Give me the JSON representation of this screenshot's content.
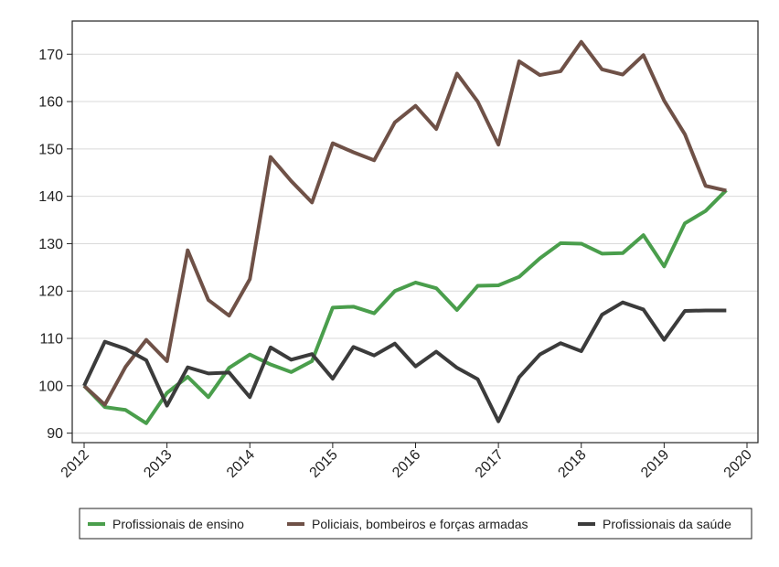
{
  "chart_data": {
    "type": "line",
    "xlabel": "",
    "ylabel": "",
    "xlim": [
      2012,
      2020
    ],
    "ylim": [
      88,
      177
    ],
    "x_ticks": [
      2012,
      2013,
      2014,
      2015,
      2016,
      2017,
      2018,
      2019,
      2020
    ],
    "x_tick_labels": [
      "2012",
      "2013",
      "2014",
      "2015",
      "2016",
      "2017",
      "2018",
      "2019",
      "2020"
    ],
    "y_ticks": [
      90,
      100,
      110,
      120,
      130,
      140,
      150,
      160,
      170
    ],
    "y_tick_labels": [
      "90",
      "100",
      "110",
      "120",
      "130",
      "140",
      "150",
      "160",
      "170"
    ],
    "grid": "horizontal",
    "legend_position": "bottom",
    "x": [
      2012.0,
      2012.25,
      2012.5,
      2012.75,
      2013.0,
      2013.25,
      2013.5,
      2013.75,
      2014.0,
      2014.25,
      2014.5,
      2014.75,
      2015.0,
      2015.25,
      2015.5,
      2015.75,
      2016.0,
      2016.25,
      2016.5,
      2016.75,
      2017.0,
      2017.25,
      2017.5,
      2017.75,
      2018.0,
      2018.25,
      2018.5,
      2018.75,
      2019.0,
      2019.25,
      2019.5,
      2019.75
    ],
    "series": [
      {
        "name": "Profissionais de ensino",
        "color": "#4a9e4c",
        "values": [
          100.0,
          95.5,
          94.9,
          92.1,
          98.5,
          101.9,
          97.6,
          103.8,
          106.6,
          104.5,
          102.9,
          105.2,
          116.5,
          116.7,
          115.3,
          120.0,
          121.8,
          120.6,
          116.0,
          121.1,
          121.2,
          123.0,
          126.9,
          130.1,
          130.0,
          127.9,
          128.0,
          131.8,
          125.2,
          134.3,
          136.9,
          141.3
        ]
      },
      {
        "name": "Policiais, bombeiros e forças armadas",
        "color": "#6f5147",
        "values": [
          100.0,
          96.0,
          104.0,
          109.7,
          105.2,
          128.6,
          118.1,
          114.8,
          122.5,
          148.3,
          143.2,
          138.7,
          151.2,
          149.3,
          147.6,
          155.6,
          159.1,
          154.2,
          165.9,
          160.0,
          150.9,
          168.5,
          165.6,
          166.4,
          172.6,
          166.8,
          165.7,
          169.8,
          160.2,
          153.1,
          142.2,
          141.2
        ]
      },
      {
        "name": "Profissionais da saúde",
        "color": "#3b3b3b",
        "values": [
          100.0,
          109.3,
          107.8,
          105.4,
          95.8,
          103.9,
          102.6,
          102.8,
          97.6,
          108.1,
          105.5,
          106.7,
          101.5,
          108.2,
          106.4,
          108.9,
          104.1,
          107.2,
          103.8,
          101.4,
          92.5,
          101.8,
          106.6,
          109.0,
          107.3,
          115.0,
          117.6,
          116.1,
          109.7,
          115.8,
          115.9,
          115.9
        ]
      }
    ]
  }
}
